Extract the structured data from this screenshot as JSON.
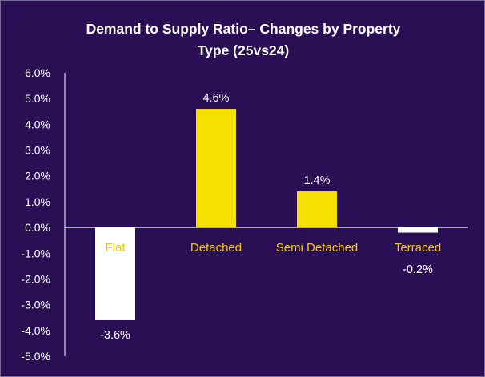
{
  "chart_data": {
    "type": "bar",
    "title_line1": "Demand to Supply Ratio– Changes by Property",
    "title_line2": "Type (25vs24)",
    "categories": [
      "Flat",
      "Detached",
      "Semi Detached",
      "Terraced"
    ],
    "values": [
      -3.6,
      4.6,
      1.4,
      -0.2
    ],
    "data_labels": [
      "-3.6%",
      "4.6%",
      "1.4%",
      "-0.2%"
    ],
    "y_ticks": [
      "6.0%",
      "5.0%",
      "4.0%",
      "3.0%",
      "2.0%",
      "1.0%",
      "0.0%",
      "-1.0%",
      "-2.0%",
      "-3.0%",
      "-4.0%",
      "-5.0%"
    ],
    "ylim": [
      -5,
      6
    ],
    "xlabel": "",
    "ylabel": "",
    "grid": false,
    "colors": {
      "background": "#2a0f55",
      "positive_bar": "#f5e000",
      "negative_bar": "#ffffff",
      "category_text": "#f5c800",
      "axis": "#ffffff"
    }
  }
}
